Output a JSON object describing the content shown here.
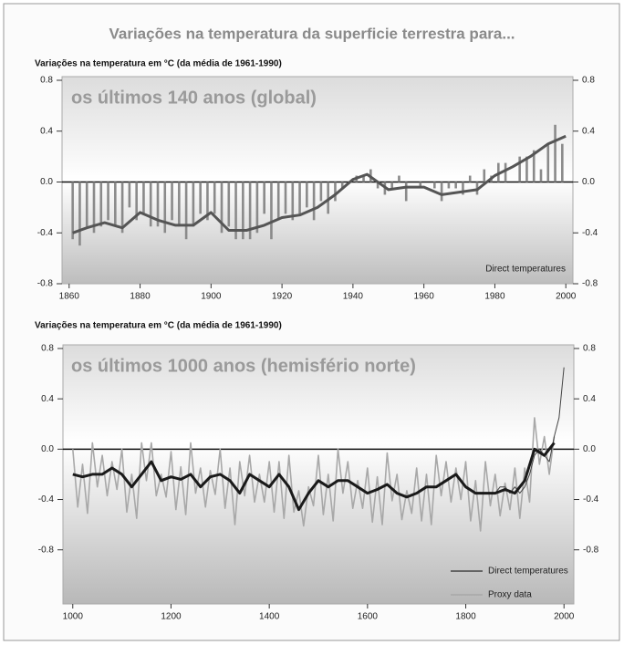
{
  "title": "Variações na temperatura da superficie terrestra para...",
  "chart_data": [
    {
      "type": "combo",
      "ylabel": "Variações na temperatura em °C (da média de 1961-1990)",
      "subtitle": "os últimos 140 anos (global)",
      "annotation": "Direct temperatures",
      "xlim": [
        1858,
        2002
      ],
      "xticks": [
        1860,
        1880,
        1900,
        1920,
        1940,
        1960,
        1980,
        2000
      ],
      "ylim": [
        -0.8,
        0.8
      ],
      "yticks": [
        -0.8,
        -0.4,
        {
          "value": 0,
          "label": "0.0"
        },
        0.4,
        0.8
      ],
      "series": [
        {
          "type": "bar",
          "color": "#8a8a8a",
          "x": [
            1861,
            1863,
            1865,
            1867,
            1869,
            1871,
            1873,
            1875,
            1877,
            1879,
            1881,
            1883,
            1885,
            1887,
            1889,
            1891,
            1893,
            1895,
            1897,
            1899,
            1901,
            1903,
            1905,
            1907,
            1909,
            1911,
            1913,
            1915,
            1917,
            1919,
            1921,
            1923,
            1925,
            1927,
            1929,
            1931,
            1933,
            1935,
            1937,
            1939,
            1941,
            1943,
            1945,
            1947,
            1949,
            1951,
            1953,
            1955,
            1957,
            1959,
            1961,
            1963,
            1965,
            1967,
            1969,
            1971,
            1973,
            1975,
            1977,
            1979,
            1981,
            1983,
            1985,
            1987,
            1989,
            1991,
            1993,
            1995,
            1997,
            1999
          ],
          "values": [
            -0.45,
            -0.5,
            -0.35,
            -0.4,
            -0.35,
            -0.3,
            -0.35,
            -0.4,
            -0.2,
            -0.3,
            -0.25,
            -0.35,
            -0.35,
            -0.4,
            -0.3,
            -0.35,
            -0.45,
            -0.35,
            -0.25,
            -0.3,
            -0.25,
            -0.4,
            -0.35,
            -0.45,
            -0.45,
            -0.45,
            -0.4,
            -0.25,
            -0.45,
            -0.3,
            -0.25,
            -0.3,
            -0.25,
            -0.2,
            -0.3,
            -0.15,
            -0.25,
            -0.15,
            -0.05,
            0.0,
            0.05,
            0.05,
            0.1,
            -0.05,
            -0.1,
            -0.05,
            0.05,
            -0.15,
            0.0,
            -0.05,
            0.0,
            -0.05,
            -0.15,
            -0.05,
            -0.05,
            -0.1,
            0.05,
            -0.1,
            0.1,
            0.05,
            0.15,
            0.15,
            0.0,
            0.2,
            0.2,
            0.25,
            0.1,
            0.3,
            0.45,
            0.3
          ]
        },
        {
          "type": "line",
          "color": "#555555",
          "x": [
            1861,
            1865,
            1870,
            1875,
            1880,
            1885,
            1890,
            1895,
            1900,
            1905,
            1910,
            1915,
            1920,
            1925,
            1930,
            1935,
            1940,
            1944,
            1948,
            1950,
            1955,
            1960,
            1965,
            1970,
            1975,
            1980,
            1985,
            1990,
            1995,
            2000
          ],
          "values": [
            -0.4,
            -0.36,
            -0.32,
            -0.36,
            -0.24,
            -0.3,
            -0.34,
            -0.34,
            -0.24,
            -0.38,
            -0.38,
            -0.34,
            -0.28,
            -0.26,
            -0.2,
            -0.1,
            0.02,
            0.06,
            -0.02,
            -0.06,
            -0.04,
            -0.04,
            -0.1,
            -0.08,
            -0.06,
            0.05,
            0.12,
            0.2,
            0.3,
            0.36
          ]
        }
      ]
    },
    {
      "type": "line",
      "ylabel": "Variações na temperatura em °C (da média de 1961-1990)",
      "subtitle": "os últimos 1000 anos (hemisfério norte)",
      "xlim": [
        980,
        2020
      ],
      "xticks": [
        1000,
        1200,
        1400,
        1600,
        1800,
        2000
      ],
      "ylim": [
        -1.23,
        0.8
      ],
      "yticks": [
        -0.8,
        -0.4,
        {
          "value": 0,
          "label": "0.0"
        },
        0.4,
        0.8
      ],
      "series": [
        {
          "name": "Direct temperatures",
          "color": "#444444",
          "x": [
            1860,
            1870,
            1880,
            1890,
            1900,
            1910,
            1920,
            1930,
            1940,
            1950,
            1960,
            1970,
            1980,
            1990,
            2000
          ],
          "values": [
            -0.35,
            -0.3,
            -0.3,
            -0.35,
            -0.3,
            -0.35,
            -0.3,
            -0.2,
            -0.05,
            0.0,
            -0.05,
            -0.1,
            0.1,
            0.25,
            0.65
          ]
        },
        {
          "name": "Proxy data",
          "color": "#a8a8a8",
          "x": [
            1000,
            1010,
            1020,
            1030,
            1040,
            1050,
            1060,
            1070,
            1080,
            1090,
            1100,
            1110,
            1120,
            1130,
            1140,
            1150,
            1160,
            1170,
            1180,
            1190,
            1200,
            1210,
            1220,
            1230,
            1240,
            1250,
            1260,
            1270,
            1280,
            1290,
            1300,
            1310,
            1320,
            1330,
            1340,
            1350,
            1360,
            1370,
            1380,
            1390,
            1400,
            1410,
            1420,
            1430,
            1440,
            1450,
            1460,
            1470,
            1480,
            1490,
            1500,
            1510,
            1520,
            1530,
            1540,
            1550,
            1560,
            1570,
            1580,
            1590,
            1600,
            1610,
            1620,
            1630,
            1640,
            1650,
            1660,
            1670,
            1680,
            1690,
            1700,
            1710,
            1720,
            1730,
            1740,
            1750,
            1760,
            1770,
            1780,
            1790,
            1800,
            1810,
            1820,
            1830,
            1840,
            1850,
            1860,
            1870,
            1880,
            1890,
            1900,
            1910,
            1920,
            1930,
            1940,
            1950,
            1960,
            1970,
            1980
          ],
          "values": [
            0.0,
            -0.46,
            -0.12,
            -0.51,
            0.05,
            -0.3,
            -0.05,
            -0.37,
            -0.1,
            -0.32,
            0.0,
            -0.5,
            -0.2,
            -0.55,
            0.05,
            -0.25,
            0.05,
            -0.37,
            -0.2,
            -0.38,
            -0.02,
            -0.48,
            -0.14,
            -0.52,
            0.05,
            -0.35,
            -0.15,
            -0.46,
            -0.17,
            -0.36,
            0.0,
            -0.47,
            -0.15,
            -0.6,
            -0.1,
            -0.37,
            -0.05,
            -0.42,
            -0.2,
            -0.42,
            -0.1,
            -0.5,
            -0.1,
            -0.55,
            -0.05,
            -0.5,
            -0.33,
            -0.61,
            -0.3,
            -0.45,
            -0.05,
            -0.52,
            -0.2,
            -0.57,
            0.0,
            -0.35,
            -0.1,
            -0.47,
            -0.25,
            -0.47,
            -0.15,
            -0.58,
            -0.22,
            -0.6,
            -0.03,
            -0.41,
            -0.2,
            -0.56,
            -0.33,
            -0.51,
            -0.15,
            -0.57,
            -0.2,
            -0.6,
            -0.05,
            -0.37,
            -0.1,
            -0.42,
            -0.15,
            -0.4,
            -0.1,
            -0.57,
            -0.25,
            -0.65,
            -0.1,
            -0.45,
            -0.2,
            -0.53,
            -0.27,
            -0.48,
            -0.15,
            -0.55,
            -0.15,
            -0.42,
            0.25,
            -0.12,
            0.1,
            -0.2,
            0.1
          ]
        },
        {
          "color": "#1a1a1a",
          "x": [
            1000,
            1020,
            1040,
            1060,
            1080,
            1100,
            1120,
            1140,
            1160,
            1180,
            1200,
            1220,
            1240,
            1260,
            1280,
            1300,
            1320,
            1340,
            1360,
            1380,
            1400,
            1420,
            1440,
            1460,
            1480,
            1500,
            1520,
            1540,
            1560,
            1580,
            1600,
            1620,
            1640,
            1660,
            1680,
            1700,
            1720,
            1740,
            1760,
            1780,
            1800,
            1820,
            1840,
            1860,
            1880,
            1900,
            1920,
            1940,
            1960,
            1980
          ],
          "values": [
            -0.2,
            -0.22,
            -0.2,
            -0.2,
            -0.15,
            -0.2,
            -0.3,
            -0.2,
            -0.1,
            -0.25,
            -0.22,
            -0.24,
            -0.2,
            -0.3,
            -0.22,
            -0.2,
            -0.25,
            -0.35,
            -0.2,
            -0.25,
            -0.3,
            -0.2,
            -0.3,
            -0.48,
            -0.35,
            -0.25,
            -0.3,
            -0.25,
            -0.25,
            -0.3,
            -0.35,
            -0.32,
            -0.28,
            -0.35,
            -0.38,
            -0.35,
            -0.3,
            -0.3,
            -0.25,
            -0.2,
            -0.3,
            -0.35,
            -0.35,
            -0.35,
            -0.32,
            -0.35,
            -0.25,
            0.0,
            -0.05,
            0.05
          ]
        }
      ]
    }
  ]
}
